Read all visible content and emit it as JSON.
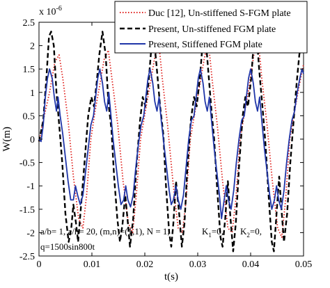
{
  "chart_data": {
    "type": "line",
    "xlabel": "t(s)",
    "ylabel": "W(m)",
    "y_exponent_label": "x 10",
    "y_exponent_power": "-6",
    "xlim": [
      0,
      0.05
    ],
    "ylim": [
      -2.5,
      2.5
    ],
    "x_ticks": [
      0,
      0.01,
      0.02,
      0.03,
      0.04,
      0.05
    ],
    "x_tick_labels": [
      "0",
      "0.01",
      "0.02",
      "0.03",
      "0.04",
      "0.05"
    ],
    "y_ticks": [
      -2.5,
      -2,
      -1.5,
      -1,
      -0.5,
      0,
      0.5,
      1,
      1.5,
      2,
      2.5
    ],
    "y_tick_labels": [
      "-2.5",
      "-2",
      "-1.5",
      "-1",
      "-0.5",
      "0",
      "0.5",
      "1",
      "1.5",
      "2",
      "2.5"
    ],
    "grid": false,
    "legend_position": "top-right",
    "annotation_line1": "a/b= 1, a/h= 20, (m,n)=(1,1), N = 1,",
    "annotation_k1": "K",
    "annotation_k1_sub": "1",
    "annotation_k1_val": "=0,",
    "annotation_k2": "K",
    "annotation_k2_sub": "2",
    "annotation_k2_val": "=0,",
    "annotation_line2": "q=1500sin800t",
    "series": [
      {
        "name": "Duc [12], Un-stiffened S-FGM plate",
        "color": "#e0201c",
        "style": "dotted",
        "period": 0.009,
        "points": [
          [
            0,
            -0.05
          ],
          [
            0.001,
            0.5
          ],
          [
            0.002,
            1.0
          ],
          [
            0.003,
            1.65
          ],
          [
            0.0038,
            1.8
          ],
          [
            0.0045,
            1.3
          ],
          [
            0.0055,
            0.4
          ],
          [
            0.0065,
            -0.8
          ],
          [
            0.0075,
            -1.7
          ],
          [
            0.0083,
            -1.9
          ],
          [
            0.009,
            -1.2
          ],
          [
            0.0098,
            0.0
          ],
          [
            0.0106,
            0.6
          ],
          [
            0.0114,
            1.1
          ],
          [
            0.0123,
            1.7
          ],
          [
            0.0131,
            1.9
          ],
          [
            0.0139,
            1.2
          ],
          [
            0.0149,
            0.3
          ],
          [
            0.0159,
            -0.9
          ],
          [
            0.0169,
            -1.8
          ],
          [
            0.0177,
            -2.0
          ],
          [
            0.0184,
            -1.2
          ],
          [
            0.0192,
            0.0
          ],
          [
            0.0201,
            0.6
          ],
          [
            0.0209,
            1.1
          ],
          [
            0.0218,
            1.7
          ],
          [
            0.0226,
            2.1
          ],
          [
            0.0233,
            1.3
          ],
          [
            0.0243,
            0.3
          ],
          [
            0.0253,
            -0.9
          ],
          [
            0.0263,
            -1.9
          ],
          [
            0.0271,
            -2.0
          ],
          [
            0.0278,
            -1.3
          ],
          [
            0.0286,
            0.0
          ],
          [
            0.0295,
            0.6
          ],
          [
            0.0303,
            1.1
          ],
          [
            0.0312,
            1.7
          ],
          [
            0.032,
            2.1
          ],
          [
            0.0327,
            1.3
          ],
          [
            0.0337,
            0.3
          ],
          [
            0.0347,
            -0.9
          ],
          [
            0.0357,
            -1.9
          ],
          [
            0.0365,
            -2.0
          ],
          [
            0.0372,
            -1.3
          ],
          [
            0.038,
            0.0
          ],
          [
            0.0389,
            0.6
          ],
          [
            0.0397,
            1.1
          ],
          [
            0.0406,
            1.8
          ],
          [
            0.0414,
            2.2
          ],
          [
            0.0421,
            1.3
          ],
          [
            0.0431,
            0.3
          ],
          [
            0.0441,
            -0.9
          ],
          [
            0.0451,
            -1.9
          ],
          [
            0.0459,
            -2.1
          ],
          [
            0.0466,
            -1.3
          ],
          [
            0.0474,
            0.0
          ],
          [
            0.0483,
            0.6
          ],
          [
            0.0491,
            1.1
          ],
          [
            0.05,
            1.6
          ]
        ]
      },
      {
        "name": "Present, Un-stiffened FGM plate",
        "color": "#000000",
        "style": "dashed",
        "points": [
          [
            0,
            -0.05
          ],
          [
            0.0008,
            0.4
          ],
          [
            0.0014,
            1.3
          ],
          [
            0.0019,
            2.2
          ],
          [
            0.0023,
            2.3
          ],
          [
            0.0028,
            2.0
          ],
          [
            0.0033,
            1.0
          ],
          [
            0.0039,
            0.2
          ],
          [
            0.0044,
            -0.5
          ],
          [
            0.005,
            -1.6
          ],
          [
            0.0056,
            -2.2
          ],
          [
            0.0061,
            -1.9
          ],
          [
            0.0065,
            -1.4
          ],
          [
            0.007,
            -1.8
          ],
          [
            0.0074,
            -2.2
          ],
          [
            0.0079,
            -1.5
          ],
          [
            0.0086,
            -0.5
          ],
          [
            0.0093,
            0.5
          ],
          [
            0.0099,
            0.9
          ],
          [
            0.0104,
            0.7
          ],
          [
            0.0109,
            1.2
          ],
          [
            0.0114,
            1.8
          ],
          [
            0.012,
            2.3
          ],
          [
            0.0126,
            1.8
          ],
          [
            0.0131,
            0.8
          ],
          [
            0.0137,
            0.2
          ],
          [
            0.0142,
            -0.8
          ],
          [
            0.0148,
            -1.7
          ],
          [
            0.0153,
            -2.2
          ],
          [
            0.0158,
            -1.8
          ],
          [
            0.0163,
            -1.2
          ],
          [
            0.0168,
            -1.8
          ],
          [
            0.0172,
            -2.3
          ],
          [
            0.0178,
            -1.7
          ],
          [
            0.0184,
            -0.6
          ],
          [
            0.0191,
            0.4
          ],
          [
            0.0196,
            0.9
          ],
          [
            0.0201,
            0.7
          ],
          [
            0.0207,
            1.2
          ],
          [
            0.0212,
            1.9
          ],
          [
            0.0217,
            2.2
          ],
          [
            0.0222,
            1.6
          ],
          [
            0.0229,
            0.7
          ],
          [
            0.0235,
            0.1
          ],
          [
            0.024,
            -1.0
          ],
          [
            0.0246,
            -2.0
          ],
          [
            0.025,
            -2.3
          ],
          [
            0.0254,
            -1.8
          ],
          [
            0.0259,
            -0.9
          ],
          [
            0.0265,
            -1.6
          ],
          [
            0.027,
            -2.3
          ],
          [
            0.0275,
            -1.8
          ],
          [
            0.028,
            -0.7
          ],
          [
            0.0287,
            0.4
          ],
          [
            0.0293,
            0.9
          ],
          [
            0.0298,
            0.7
          ],
          [
            0.0304,
            1.3
          ],
          [
            0.0309,
            2.0
          ],
          [
            0.0314,
            2.3
          ],
          [
            0.0319,
            1.6
          ],
          [
            0.0326,
            0.6
          ],
          [
            0.0331,
            0.0
          ],
          [
            0.0337,
            -1.1
          ],
          [
            0.0343,
            -2.1
          ],
          [
            0.0347,
            -2.3
          ],
          [
            0.0352,
            -1.7
          ],
          [
            0.0357,
            -0.9
          ],
          [
            0.0362,
            -1.7
          ],
          [
            0.0367,
            -2.4
          ],
          [
            0.0372,
            -1.8
          ],
          [
            0.0378,
            -0.6
          ],
          [
            0.0385,
            0.5
          ],
          [
            0.039,
            0.9
          ],
          [
            0.0395,
            0.7
          ],
          [
            0.0401,
            1.3
          ],
          [
            0.0406,
            2.1
          ],
          [
            0.0411,
            2.3
          ],
          [
            0.0416,
            1.5
          ],
          [
            0.0423,
            0.6
          ],
          [
            0.0428,
            -0.1
          ],
          [
            0.0434,
            -1.2
          ],
          [
            0.044,
            -2.2
          ],
          [
            0.0444,
            -2.4
          ],
          [
            0.0449,
            -1.6
          ],
          [
            0.0454,
            -0.8
          ],
          [
            0.0459,
            -1.6
          ],
          [
            0.0463,
            -2.2
          ],
          [
            0.0469,
            -1.6
          ],
          [
            0.0475,
            -0.5
          ],
          [
            0.0482,
            0.5
          ],
          [
            0.0487,
            1.2
          ],
          [
            0.0492,
            1.8
          ],
          [
            0.0496,
            2.1
          ],
          [
            0.05,
            1.9
          ]
        ]
      },
      {
        "name": "Present, Stiffened FGM plate",
        "color": "#1f35a8",
        "style": "solid",
        "points": [
          [
            0,
            0.0
          ],
          [
            0.0004,
            -0.05
          ],
          [
            0.0008,
            0.3
          ],
          [
            0.0012,
            0.9
          ],
          [
            0.0016,
            1.3
          ],
          [
            0.002,
            1.5
          ],
          [
            0.0025,
            1.3
          ],
          [
            0.0029,
            0.9
          ],
          [
            0.0033,
            0.6
          ],
          [
            0.0036,
            0.9
          ],
          [
            0.004,
            0.5
          ],
          [
            0.0045,
            0.1
          ],
          [
            0.005,
            -0.4
          ],
          [
            0.0055,
            -0.9
          ],
          [
            0.006,
            -1.3
          ],
          [
            0.0065,
            -1.3
          ],
          [
            0.0069,
            -1.0
          ],
          [
            0.0073,
            -1.2
          ],
          [
            0.0078,
            -1.4
          ],
          [
            0.0083,
            -1.2
          ],
          [
            0.0088,
            -0.7
          ],
          [
            0.0093,
            -0.2
          ],
          [
            0.0098,
            0.3
          ],
          [
            0.0103,
            0.5
          ],
          [
            0.0107,
            0.9
          ],
          [
            0.0111,
            1.3
          ],
          [
            0.0115,
            1.5
          ],
          [
            0.012,
            1.2
          ],
          [
            0.0124,
            0.8
          ],
          [
            0.0128,
            0.6
          ],
          [
            0.0132,
            1.0
          ],
          [
            0.0136,
            0.5
          ],
          [
            0.014,
            0.0
          ],
          [
            0.0145,
            -0.5
          ],
          [
            0.015,
            -1.0
          ],
          [
            0.0155,
            -1.4
          ],
          [
            0.016,
            -1.3
          ],
          [
            0.0164,
            -1.0
          ],
          [
            0.0168,
            -1.3
          ],
          [
            0.0173,
            -1.45
          ],
          [
            0.0178,
            -1.2
          ],
          [
            0.0183,
            -0.6
          ],
          [
            0.0188,
            -0.1
          ],
          [
            0.0193,
            0.3
          ],
          [
            0.0198,
            0.5
          ],
          [
            0.0202,
            0.9
          ],
          [
            0.0206,
            1.3
          ],
          [
            0.021,
            1.5
          ],
          [
            0.0215,
            1.2
          ],
          [
            0.0219,
            0.8
          ],
          [
            0.0223,
            0.6
          ],
          [
            0.0227,
            0.9
          ],
          [
            0.0231,
            0.4
          ],
          [
            0.0236,
            -0.1
          ],
          [
            0.0241,
            -0.6
          ],
          [
            0.0246,
            -1.1
          ],
          [
            0.025,
            -1.4
          ],
          [
            0.0254,
            -1.3
          ],
          [
            0.0259,
            -1.0
          ],
          [
            0.0263,
            -1.3
          ],
          [
            0.0268,
            -1.5
          ],
          [
            0.0273,
            -1.2
          ],
          [
            0.0278,
            -0.6
          ],
          [
            0.0283,
            0.0
          ],
          [
            0.0288,
            0.4
          ],
          [
            0.0293,
            0.5
          ],
          [
            0.0297,
            0.9
          ],
          [
            0.0301,
            1.3
          ],
          [
            0.0305,
            1.5
          ],
          [
            0.031,
            1.2
          ],
          [
            0.0314,
            0.8
          ],
          [
            0.0318,
            0.6
          ],
          [
            0.0322,
            0.9
          ],
          [
            0.0326,
            0.4
          ],
          [
            0.0331,
            -0.2
          ],
          [
            0.0336,
            -0.7
          ],
          [
            0.0341,
            -1.2
          ],
          [
            0.0345,
            -1.7
          ],
          [
            0.035,
            -1.3
          ],
          [
            0.0354,
            -1.0
          ],
          [
            0.0358,
            -1.3
          ],
          [
            0.0363,
            -1.5
          ],
          [
            0.0368,
            -1.1
          ],
          [
            0.0373,
            -0.5
          ],
          [
            0.0378,
            0.0
          ],
          [
            0.0383,
            0.4
          ],
          [
            0.0388,
            0.5
          ],
          [
            0.0392,
            0.9
          ],
          [
            0.0396,
            1.3
          ],
          [
            0.04,
            1.5
          ],
          [
            0.0405,
            1.2
          ],
          [
            0.0409,
            0.8
          ],
          [
            0.0413,
            0.6
          ],
          [
            0.0417,
            0.9
          ],
          [
            0.0421,
            0.4
          ],
          [
            0.0426,
            -0.2
          ],
          [
            0.0431,
            -0.7
          ],
          [
            0.0436,
            -1.2
          ],
          [
            0.044,
            -1.5
          ],
          [
            0.0445,
            -1.3
          ],
          [
            0.0449,
            -1.0
          ],
          [
            0.0453,
            -1.3
          ],
          [
            0.0458,
            -1.5
          ],
          [
            0.0463,
            -1.1
          ],
          [
            0.0468,
            -0.5
          ],
          [
            0.0473,
            0.0
          ],
          [
            0.0478,
            0.4
          ],
          [
            0.0483,
            0.6
          ],
          [
            0.0488,
            1.0
          ],
          [
            0.0493,
            1.3
          ],
          [
            0.0497,
            1.5
          ],
          [
            0.05,
            1.4
          ]
        ]
      }
    ]
  }
}
